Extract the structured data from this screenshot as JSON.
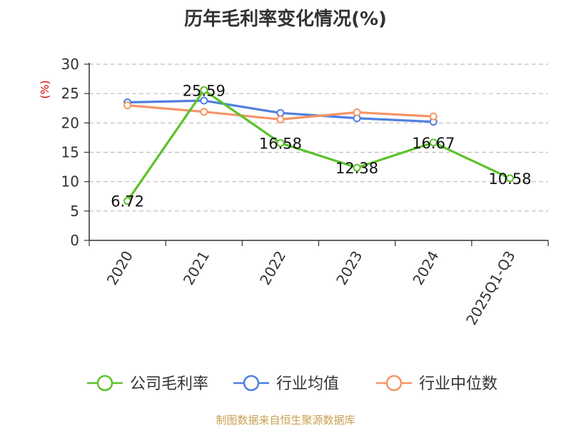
{
  "page": {
    "title": "历年毛利率变化情况(%)",
    "source": "制图数据来自恒生聚源数据库"
  },
  "chart_data": {
    "type": "line",
    "title": "历年毛利率变化情况(%)",
    "xlabel": "",
    "ylabel": "(%)",
    "ylim": [
      0,
      30
    ],
    "yticks": [
      0,
      5,
      10,
      15,
      20,
      25,
      30
    ],
    "categories": [
      "2020",
      "2021",
      "2022",
      "2023",
      "2024",
      "2025Q1-Q3"
    ],
    "grid": true,
    "legend_position": "bottom",
    "series": [
      {
        "name": "公司毛利率",
        "color": "#5cc22a",
        "show_labels": true,
        "values": [
          6.72,
          25.59,
          16.58,
          12.38,
          16.67,
          10.58
        ]
      },
      {
        "name": "行业均值",
        "color": "#4f7fe0",
        "show_labels": false,
        "values": [
          23.5,
          23.8,
          21.7,
          20.8,
          20.2,
          null
        ]
      },
      {
        "name": "行业中位数",
        "color": "#f59466",
        "show_labels": false,
        "values": [
          23.0,
          21.9,
          20.6,
          21.8,
          21.1,
          null
        ]
      }
    ]
  }
}
